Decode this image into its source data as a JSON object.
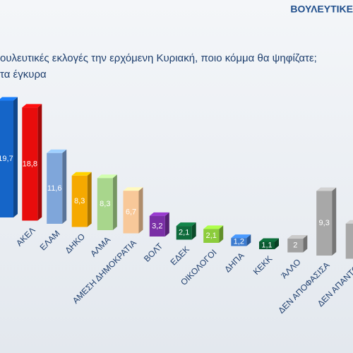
{
  "chart_data": {
    "type": "bar",
    "header": "ΒΟΥΛΕΥΤΙΚΕ",
    "title": "ουλευτικές εκλογές την ερχόμενη Κυριακή, ποιο κόμμα θα ψηφίζατε;",
    "subtitle": "τα έγκυρα",
    "categories": [
      null,
      "ΑΚΕΛ",
      "ΕΛΑΜ",
      "ΔΗΚΟ",
      "ΑΛΜΑ",
      "ΑΜΕΣΗ ΔΗΜΟΚΡΑΤΙΑ",
      "ΒΟΛΤ",
      "ΕΔΕΚ",
      "ΟΙΚΟΛΟΓΟΙ",
      "ΔΗΠΑ",
      "ΚΕΚΚ",
      "ΆΛΛΟ",
      "ΔΕΝ ΑΠΟΦΑΣΙΣΑ",
      "ΔΕΝ ΑΠΑΝΤΩ"
    ],
    "values": [
      19.7,
      18.8,
      11.6,
      8.3,
      8.3,
      6.7,
      3.2,
      2.1,
      2.1,
      1.2,
      1.1,
      2,
      9.3,
      5
    ],
    "value_labels": [
      "19,7",
      "18,8",
      "11,6",
      "8,3",
      "8,3",
      "6,7",
      "3,2",
      "2,1",
      "2,1",
      "1,2",
      "1,1",
      "2",
      "9,3",
      null
    ],
    "colors": [
      "#1565c8",
      "#e80c0c",
      "#7fa6da",
      "#f5a900",
      "#a8d68c",
      "#f8c899",
      "#7a2fa6",
      "#0f6b3c",
      "#8ccc3c",
      "#3b7bd0",
      "#0b5a30",
      "#a2a2a2",
      "#a8a8a8",
      "#a8a8a8"
    ]
  }
}
